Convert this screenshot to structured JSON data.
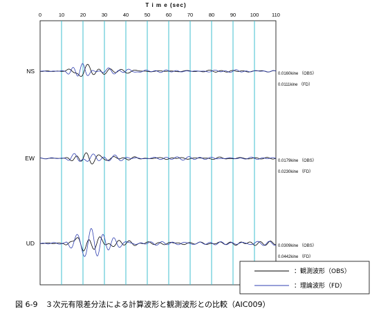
{
  "caption": "図 6-9　３次元有限差分法による計算波形と観測波形との比較（AIC009）",
  "chart_data": {
    "type": "line",
    "title": "",
    "xlabel": "T i m e (sec)",
    "xlim": [
      0,
      110
    ],
    "xticks": [
      "0",
      "10",
      "20",
      "30",
      "40",
      "50",
      "60",
      "70",
      "80",
      "90",
      "100",
      "110"
    ],
    "grid_x": true,
    "legend_position": "bottom-right",
    "series": [
      {
        "name": "：観測波形（OBS）",
        "color": "#000000"
      },
      {
        "name": "：理論波形（FD）",
        "color": "#2f3fb0"
      }
    ],
    "components": [
      {
        "label": "NS",
        "amp_obs": "0.0160kine （OBS）",
        "amp_fd": "0.0111kine （FD）",
        "scale": 1.0
      },
      {
        "label": "EW",
        "amp_obs": "0.0179kine （OBS）",
        "amp_fd": "0.0230kine （FD）",
        "scale": 1.2
      },
      {
        "label": "UD",
        "amp_obs": "0.0309kine （OBS）",
        "amp_fd": "0.0442kine （FD）",
        "scale": 1.9
      }
    ]
  }
}
